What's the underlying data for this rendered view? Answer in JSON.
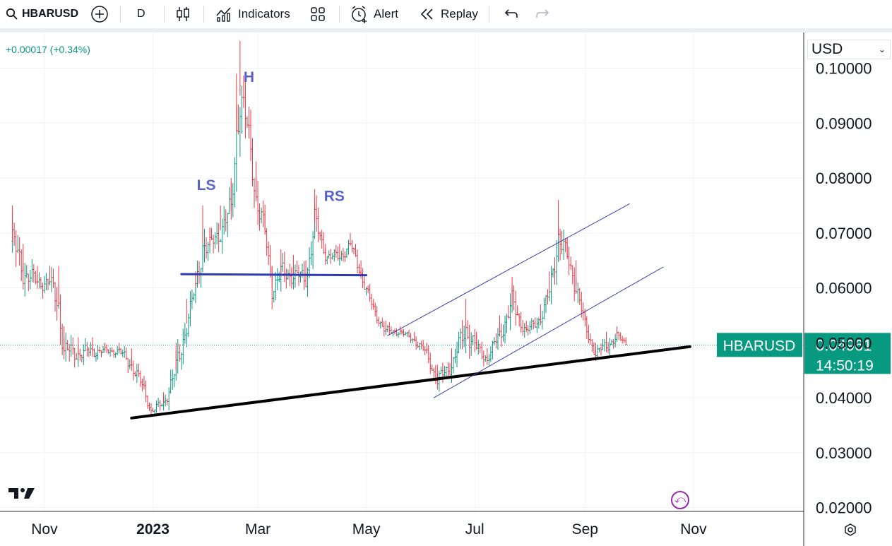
{
  "toolbar": {
    "symbol": "HBARUSD",
    "interval": "D",
    "indicators_label": "Indicators",
    "alert_label": "Alert",
    "replay_label": "Replay"
  },
  "currency_select": {
    "value": "USD"
  },
  "change_text": "+0.00017 (+0.34%)",
  "last_price": {
    "symbol": "HBARUSD",
    "price": "0.04961",
    "countdown": "14:50:19"
  },
  "colors": {
    "up": "#089981",
    "down": "#f23645",
    "line": "#2f3ab2",
    "support": "#000000",
    "channel": "#3a3fa8",
    "label": "#5862c9"
  },
  "chart_data": {
    "type": "ohlc",
    "y_axis": {
      "ticks": [
        "0.10000",
        "0.09000",
        "0.08000",
        "0.07000",
        "0.06000",
        "0.05000",
        "0.04000",
        "0.03000",
        "0.02000"
      ],
      "range": [
        0.0193,
        0.1065
      ]
    },
    "x_axis": {
      "ticks": [
        "Nov",
        "2023",
        "Mar",
        "May",
        "Jul",
        "Sep",
        "Nov"
      ],
      "tick_dates": [
        "2022-11-01",
        "2023-01-01",
        "2023-03-01",
        "2023-05-01",
        "2023-07-01",
        "2023-09-01",
        "2023-11-01"
      ],
      "range": [
        "2022-10-07",
        "2024-01-02"
      ]
    },
    "series": [
      {
        "values": [
          [
            "2022-10-14",
            0.075,
            0.062
          ],
          [
            "2022-10-20",
            0.068,
            0.058
          ],
          [
            "2022-10-28",
            0.064,
            0.058
          ],
          [
            "2022-11-04",
            0.064,
            0.058
          ],
          [
            "2022-11-09",
            0.064,
            0.05
          ],
          [
            "2022-11-12",
            0.053,
            0.044
          ],
          [
            "2022-11-20",
            0.051,
            0.045
          ],
          [
            "2022-11-28",
            0.051,
            0.046
          ],
          [
            "2022-12-05",
            0.05,
            0.047
          ],
          [
            "2022-12-13",
            0.05,
            0.047
          ],
          [
            "2022-12-20",
            0.049,
            0.043
          ],
          [
            "2022-12-27",
            0.044,
            0.039
          ],
          [
            "2022-12-31",
            0.039,
            0.036
          ],
          [
            "2023-01-07",
            0.041,
            0.037
          ],
          [
            "2023-01-14",
            0.05,
            0.04
          ],
          [
            "2023-01-20",
            0.058,
            0.049
          ],
          [
            "2023-01-25",
            0.063,
            0.057
          ],
          [
            "2023-01-29",
            0.075,
            0.061
          ],
          [
            "2023-02-02",
            0.071,
            0.064
          ],
          [
            "2023-02-08",
            0.075,
            0.066
          ],
          [
            "2023-02-14",
            0.08,
            0.068
          ],
          [
            "2023-02-17",
            0.099,
            0.078
          ],
          [
            "2023-02-19",
            0.105,
            0.085
          ],
          [
            "2023-02-24",
            0.093,
            0.082
          ],
          [
            "2023-02-28",
            0.083,
            0.07
          ],
          [
            "2023-03-05",
            0.074,
            0.066
          ],
          [
            "2023-03-09",
            0.064,
            0.056
          ],
          [
            "2023-03-14",
            0.067,
            0.058
          ],
          [
            "2023-03-21",
            0.066,
            0.059
          ],
          [
            "2023-03-28",
            0.065,
            0.058
          ],
          [
            "2023-04-02",
            0.078,
            0.066
          ],
          [
            "2023-04-08",
            0.068,
            0.064
          ],
          [
            "2023-04-16",
            0.068,
            0.063
          ],
          [
            "2023-04-22",
            0.07,
            0.066
          ],
          [
            "2023-04-28",
            0.065,
            0.06
          ],
          [
            "2023-05-05",
            0.058,
            0.054
          ],
          [
            "2023-05-12",
            0.054,
            0.05
          ],
          [
            "2023-05-20",
            0.053,
            0.051
          ],
          [
            "2023-05-28",
            0.052,
            0.049
          ],
          [
            "2023-06-04",
            0.05,
            0.046
          ],
          [
            "2023-06-10",
            0.046,
            0.04
          ],
          [
            "2023-06-18",
            0.049,
            0.043
          ],
          [
            "2023-06-26",
            0.058,
            0.047
          ],
          [
            "2023-07-02",
            0.052,
            0.046
          ],
          [
            "2023-07-08",
            0.049,
            0.045
          ],
          [
            "2023-07-15",
            0.055,
            0.048
          ],
          [
            "2023-07-22",
            0.062,
            0.052
          ],
          [
            "2023-07-30",
            0.054,
            0.05
          ],
          [
            "2023-08-07",
            0.057,
            0.052
          ],
          [
            "2023-08-12",
            0.063,
            0.055
          ],
          [
            "2023-08-17",
            0.076,
            0.063
          ],
          [
            "2023-08-22",
            0.069,
            0.062
          ],
          [
            "2023-08-27",
            0.065,
            0.056
          ],
          [
            "2023-09-01",
            0.056,
            0.05
          ],
          [
            "2023-09-07",
            0.05,
            0.046
          ],
          [
            "2023-09-13",
            0.052,
            0.047
          ],
          [
            "2023-09-19",
            0.053,
            0.049
          ],
          [
            "2023-09-24",
            0.051,
            0.049
          ]
        ]
      }
    ],
    "annotations": [
      {
        "text": "H",
        "date": "2023-02-24",
        "value": 0.0975
      },
      {
        "text": "LS",
        "date": "2023-01-31",
        "value": 0.0778
      },
      {
        "text": "RS",
        "date": "2023-04-13",
        "value": 0.0758
      }
    ],
    "lines": [
      {
        "name": "neckline",
        "from": [
          "2023-01-17",
          0.0625
        ],
        "to": [
          "2023-05-01",
          0.0623
        ]
      },
      {
        "name": "support",
        "from": [
          "2022-12-20",
          0.0363
        ],
        "to": [
          "2023-10-30",
          0.0493
        ]
      },
      {
        "name": "channel-upper",
        "from": [
          "2023-05-13",
          0.0513
        ],
        "to": [
          "2023-09-26",
          0.0753
        ]
      },
      {
        "name": "channel-lower",
        "from": [
          "2023-06-08",
          0.04
        ],
        "to": [
          "2023-10-15",
          0.0638
        ]
      }
    ]
  }
}
